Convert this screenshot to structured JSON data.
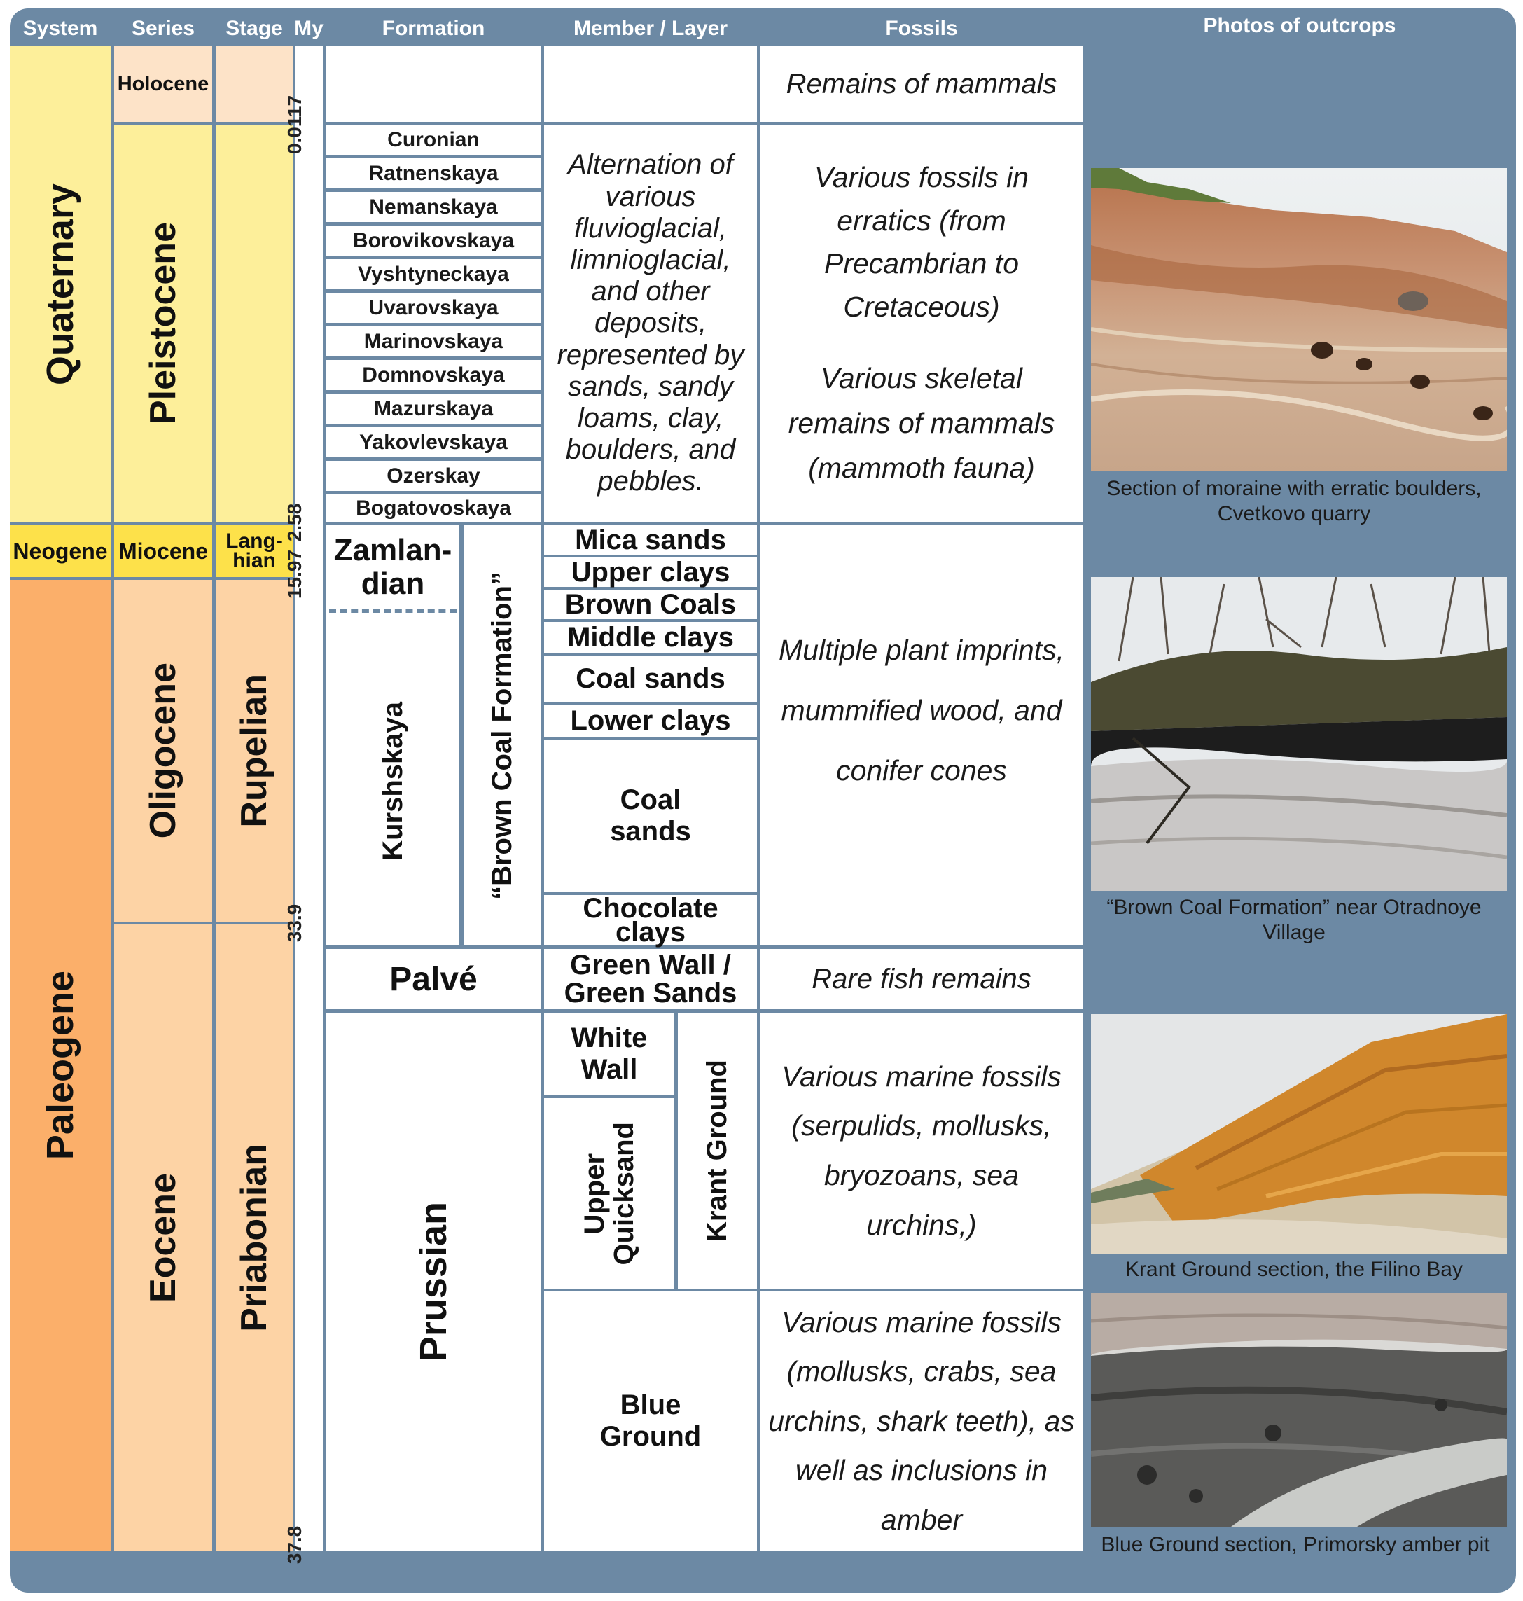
{
  "headers": {
    "system": "System",
    "series": "Series",
    "stage": "Stage",
    "my": "My",
    "formation": "Formation",
    "member": "Member / Layer",
    "fossils": "Fossils",
    "photos": "Photos of outcrops"
  },
  "systems": {
    "quaternary": "Quaternary",
    "neogene": "Neogene",
    "paleogene": "Paleogene"
  },
  "series": {
    "holocene": "Holocene",
    "pleistocene": "Pleistocene",
    "miocene": "Miocene",
    "oligocene": "Oligocene",
    "eocene": "Eocene"
  },
  "stages": {
    "langhian": "Lang-\nhian",
    "rupelian": "Rupelian",
    "priabonian": "Priabonian"
  },
  "ages": [
    "0.0117",
    "2.58",
    "15.97",
    "33.9",
    "37.8"
  ],
  "pleistocene_formations": [
    "Curonian",
    "Ratnenskaya",
    "Nemanskaya",
    "Borovikovskaya",
    "Vyshtyneckaya",
    "Uvarovskaya",
    "Marinovskaya",
    "Domnovskaya",
    "Mazurskaya",
    "Yakovlevskaya",
    "Ozerskay",
    "Bogatovoskaya"
  ],
  "formations": {
    "zamlandian": "Zamlan-\ndian",
    "kurshskaya": "Kurshskaya",
    "brown_coal": "“Brown Coal Formation”",
    "palve": "Palvé",
    "prussian": "Prussian"
  },
  "members": {
    "quaternary_desc": "Alternation of various fluvioglacial, limnioglacial, and other deposits, represented by sands, sandy loams, clay, boulders, and pebbles.",
    "mica_sands": "Mica sands",
    "upper_clays": "Upper clays",
    "brown_coals": "Brown Coals",
    "middle_clays": "Middle clays",
    "coal_sands_1": "Coal sands",
    "lower_clays": "Lower clays",
    "coal_sands_2": "Coal\nsands",
    "chocolate_clays": "Chocolate\nclays",
    "green_wall": "Green Wall /\nGreen Sands",
    "white_wall": "White\nWall",
    "upper_quicksand": "Upper\nQuicksand",
    "krant_ground": "Krant Ground",
    "blue_ground": "Blue\nGround"
  },
  "fossils": {
    "holocene": "Remains of mammals",
    "pleistocene_1": "Various fossils in erratics (from Precambrian to Cretaceous)",
    "pleistocene_2": "Various skeletal remains of mammals (mammoth fauna)",
    "brown_coal": "Multiple plant imprints, mummified wood, and conifer cones",
    "palve": "Rare fish remains",
    "krant": "Various marine fossils (serpulids, mollusks, bryozoans, sea urchins,)",
    "blue": "Various marine fossils (mollusks, crabs, sea urchins, shark teeth), as well as inclusions in amber"
  },
  "photos": [
    {
      "caption": "Section of moraine with erratic boulders, Cvetkovo quarry"
    },
    {
      "caption": "“Brown Coal Formation” near Otradnoye Village"
    },
    {
      "caption": "Krant Ground section, the Filino Bay"
    },
    {
      "caption": "Blue Ground section, Primorsky amber pit"
    }
  ],
  "colors": {
    "frame": "#6c89a4",
    "quaternary": "#fdef9a",
    "neogene": "#fde14a",
    "paleogene": "#fbaf6a",
    "paleogene_light": "#fdd3a5"
  }
}
